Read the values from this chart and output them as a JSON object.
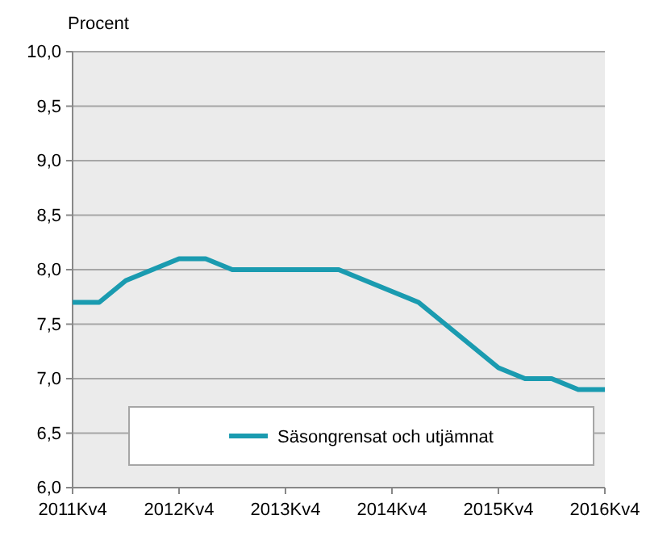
{
  "chart_data": {
    "type": "line",
    "ylabel": "Procent",
    "categories": [
      "2011Kv4",
      null,
      null,
      null,
      "2012Kv4",
      null,
      null,
      null,
      "2013Kv4",
      null,
      null,
      null,
      "2014Kv4",
      null,
      null,
      null,
      "2015Kv4",
      null,
      null,
      null,
      "2016Kv4"
    ],
    "series": [
      {
        "name": "Säsongrensat och utjämnat",
        "color": "#1a9bb0",
        "values": [
          7.7,
          7.7,
          7.9,
          8.0,
          8.1,
          8.1,
          8.0,
          8.0,
          8.0,
          8.0,
          8.0,
          7.9,
          7.8,
          7.7,
          7.5,
          7.3,
          7.1,
          7.0,
          7.0,
          6.9,
          6.9
        ]
      }
    ],
    "ylim": [
      6,
      10
    ],
    "yticks": [
      {
        "value": 6,
        "label": "6,0"
      },
      {
        "value": 6.5,
        "label": "6,5"
      },
      {
        "value": 7,
        "label": "7,0"
      },
      {
        "value": 7.5,
        "label": "7,5"
      },
      {
        "value": 8,
        "label": "8,0"
      },
      {
        "value": 8.5,
        "label": "8,5"
      },
      {
        "value": 9,
        "label": "9,0"
      },
      {
        "value": 9.5,
        "label": "9,5"
      },
      {
        "value": 10,
        "label": "10,0"
      }
    ],
    "grid": "y",
    "legend": "bottom",
    "marker": "none",
    "line_style": "solid"
  }
}
